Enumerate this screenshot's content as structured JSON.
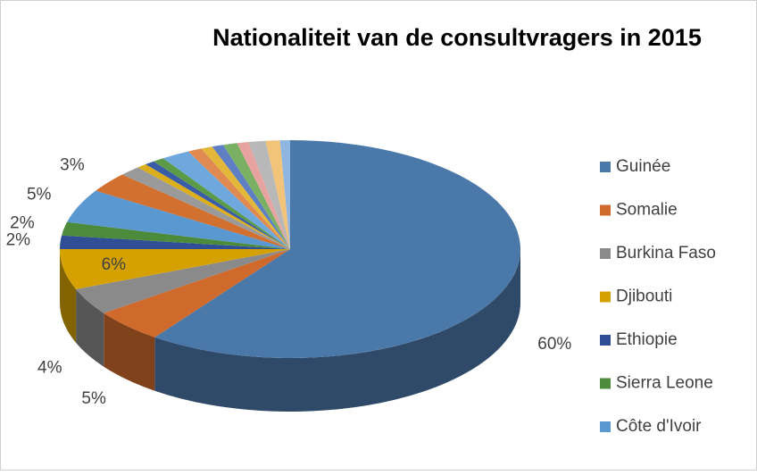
{
  "chart_data": {
    "type": "pie3d",
    "title": "Nationaliteit van de consultvragers in 2015",
    "categories": [
      "Guinée",
      "Somalie",
      "Burkina Faso",
      "Djibouti",
      "Ethiopie",
      "Sierra Leone",
      "Côte d'Ivoir",
      null,
      null,
      null,
      null,
      null,
      null,
      null,
      null,
      null,
      null,
      null,
      null,
      null,
      null
    ],
    "values": [
      60,
      5,
      4,
      6,
      2,
      2,
      5,
      3,
      1.5,
      0.7,
      0.7,
      0.8,
      2,
      1,
      0.8,
      0.8,
      1,
      0.8,
      1.2,
      1,
      0.7
    ],
    "value_labels": [
      "60%",
      "5%",
      "4%",
      "6%",
      "2%",
      "2%",
      "5%",
      "3%",
      null,
      null,
      null,
      null,
      null,
      null,
      null,
      null,
      null,
      null,
      null,
      null,
      null
    ],
    "colors": [
      "#4a78a8",
      "#cf6a2c",
      "#8a8a8a",
      "#d4a100",
      "#2f4e96",
      "#4c8a3c",
      "#5a98d2",
      "#d2702f",
      "#9a9a9a",
      "#dcae1a",
      "#3a5ca6",
      "#5b9a47",
      "#6fa8dc",
      "#e08a52",
      "#e3b83a",
      "#5f7fc4",
      "#79b064",
      "#e6a3a0",
      "#b8b8b8",
      "#f2c47a",
      "#8fb6e0"
    ]
  }
}
